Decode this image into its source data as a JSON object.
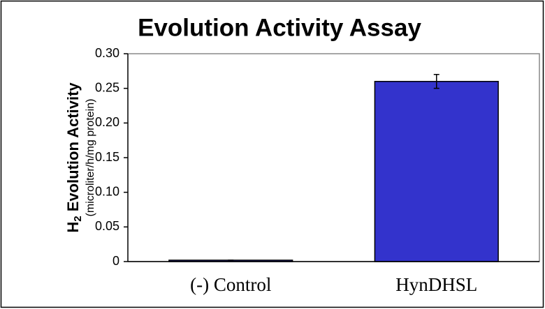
{
  "chart_data": {
    "type": "bar",
    "title": "Evolution Activity Assay",
    "y_label": [
      "H",
      "2",
      " Evolution Activity"
    ],
    "y_sublabel": "(microliter/h/mg protein)",
    "categories": [
      "(-) Control",
      "HynDHSL"
    ],
    "values": [
      0.002,
      0.26
    ],
    "errors": [
      0,
      0.01
    ],
    "color": "#3333cc",
    "ylim": [
      0,
      0.3
    ],
    "yticks": [
      0,
      0.05,
      {
        "value": 0.1,
        "label": "0.10"
      },
      0.15,
      {
        "value": 0.2,
        "label": "0.20"
      },
      0.25,
      {
        "value": 0.3,
        "label": "0.30"
      }
    ]
  }
}
